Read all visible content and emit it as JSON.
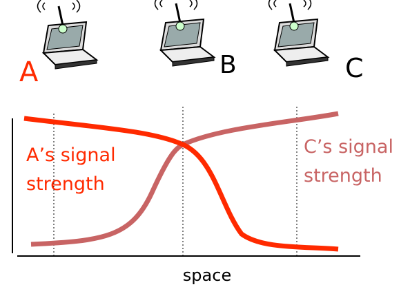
{
  "nodes": [
    {
      "label": "A"
    },
    {
      "label": "B"
    },
    {
      "label": "C"
    }
  ],
  "curves": [
    {
      "label": [
        "A’s signal",
        "strength"
      ]
    },
    {
      "label": [
        "C’s signal",
        "strength"
      ]
    }
  ],
  "x_axis": {
    "label": "space"
  }
}
